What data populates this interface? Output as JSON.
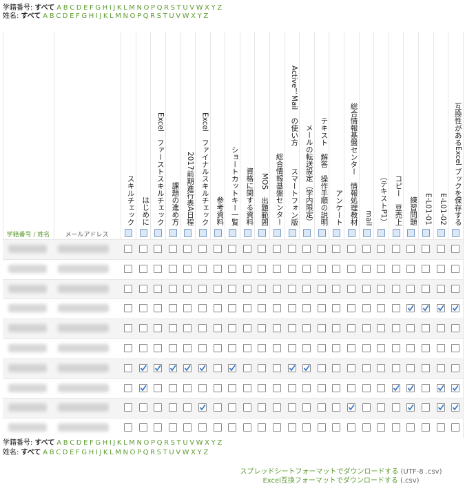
{
  "filters": {
    "id_label": "学籍番号:",
    "name_label": "姓名:",
    "all": "すべて",
    "letters": [
      "A",
      "B",
      "C",
      "D",
      "E",
      "F",
      "G",
      "H",
      "I",
      "J",
      "K",
      "L",
      "M",
      "N",
      "O",
      "P",
      "Q",
      "R",
      "S",
      "T",
      "U",
      "V",
      "W",
      "X",
      "Y",
      "Z"
    ]
  },
  "table": {
    "header": {
      "id_name": "学籍番号 / 姓名",
      "email": "メールアドレス"
    },
    "activities": [
      "スキルチェック",
      "はじめに",
      "Excel　ファーストスキルチェック",
      "課題の進め方",
      "2017前期進行表A日程",
      "Excel　ファイナルスキルチェック",
      "参考資料",
      "ショートカットキー一覧",
      "資格に関する資料",
      "MOS　出題範囲",
      "総合情報基盤センター",
      "Active！Mail　の使い方　　　スマートフォン版",
      "メールの転送設定（学内限定）",
      "テキスト　解答　操作手順の説明",
      "アンケート",
      "総合情報基盤センター　情報処理教材",
      "mail",
      "（テキストP1）",
      "コピー　豆売上",
      "練習問題",
      "E-L01-01",
      "E-L01-02",
      "互換性があるExcel ブックを保存する"
    ],
    "rows": [
      {
        "completed": [
          false,
          false,
          false,
          false,
          false,
          false,
          false,
          false,
          false,
          false,
          false,
          false,
          false,
          false,
          false,
          false,
          false,
          false,
          false,
          false,
          false,
          false,
          false
        ]
      },
      {
        "completed": [
          false,
          false,
          false,
          false,
          false,
          false,
          false,
          false,
          false,
          false,
          false,
          false,
          false,
          false,
          false,
          false,
          false,
          false,
          false,
          false,
          false,
          false,
          false
        ]
      },
      {
        "completed": [
          false,
          false,
          false,
          false,
          false,
          false,
          false,
          false,
          false,
          false,
          false,
          false,
          false,
          false,
          false,
          false,
          false,
          false,
          false,
          false,
          false,
          false,
          false
        ]
      },
      {
        "completed": [
          false,
          false,
          false,
          false,
          false,
          false,
          false,
          false,
          false,
          false,
          false,
          false,
          false,
          false,
          false,
          false,
          false,
          false,
          false,
          true,
          true,
          true,
          true
        ]
      },
      {
        "completed": [
          false,
          false,
          false,
          false,
          false,
          false,
          false,
          false,
          false,
          false,
          false,
          false,
          false,
          false,
          false,
          false,
          false,
          false,
          false,
          false,
          false,
          false,
          false
        ]
      },
      {
        "completed": [
          false,
          false,
          false,
          false,
          false,
          false,
          false,
          false,
          false,
          false,
          false,
          false,
          false,
          false,
          false,
          false,
          false,
          false,
          false,
          false,
          false,
          false,
          false
        ]
      },
      {
        "completed": [
          false,
          true,
          true,
          true,
          true,
          true,
          false,
          true,
          false,
          false,
          false,
          true,
          true,
          false,
          false,
          false,
          false,
          false,
          false,
          false,
          false,
          false,
          false
        ]
      },
      {
        "completed": [
          false,
          true,
          false,
          false,
          false,
          false,
          false,
          false,
          false,
          false,
          false,
          false,
          false,
          false,
          false,
          false,
          false,
          false,
          true,
          true,
          false,
          true,
          true
        ]
      },
      {
        "completed": [
          false,
          false,
          false,
          false,
          false,
          true,
          false,
          false,
          false,
          false,
          false,
          false,
          false,
          false,
          false,
          true,
          false,
          false,
          false,
          true,
          false,
          true,
          true
        ]
      },
      {
        "completed": [
          false,
          false,
          false,
          false,
          false,
          false,
          false,
          false,
          false,
          false,
          false,
          false,
          false,
          false,
          false,
          false,
          false,
          false,
          false,
          false,
          false,
          false,
          false
        ]
      }
    ]
  },
  "download": {
    "spreadsheet": "スプレッドシートフォーマットでダウンロードする",
    "spreadsheet_note": "(UTF-8 .csv)",
    "excel": "Excel互換フォーマットでダウンロードする",
    "excel_note": "(.csv)"
  }
}
